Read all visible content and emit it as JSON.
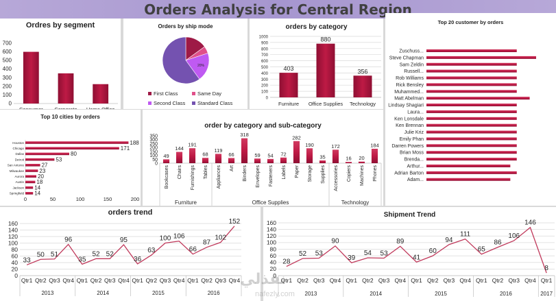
{
  "header": {
    "title": "Orders Analysis for Central Region"
  },
  "colors": {
    "bar": "#be1a45",
    "line": "#c0395b",
    "header": "#a999d2"
  },
  "watermark": {
    "text": "نفذلي",
    "sub": "nafezly.com"
  },
  "chart_data": [
    {
      "id": "segment",
      "type": "bar",
      "title": "Ordres by segment",
      "categories": [
        "Consumer",
        "Corporate",
        "Home Office"
      ],
      "values": [
        600,
        350,
        225
      ],
      "ylim": [
        0,
        700
      ],
      "yticks": [
        0,
        100,
        200,
        300,
        400,
        500,
        600,
        700
      ]
    },
    {
      "id": "shipmode",
      "type": "pie",
      "title": "Orders by ship mode",
      "categories": [
        "First Class",
        "Same Day",
        "Second Class",
        "Standard Class"
      ],
      "values": [
        15,
        5,
        20,
        60
      ],
      "slice_labels": [
        "",
        "",
        "20%",
        ""
      ],
      "colors": [
        "#9e1a46",
        "#e0508a",
        "#bf5af2",
        "#7452b0"
      ]
    },
    {
      "id": "category",
      "type": "bar",
      "title": "orders by category",
      "categories": [
        "Furniture",
        "Office Supplies",
        "Technology"
      ],
      "values": [
        403,
        880,
        356
      ],
      "ylim": [
        0,
        1000
      ],
      "yticks": [
        0,
        100,
        200,
        300,
        400,
        500,
        600,
        700,
        800,
        900,
        1000
      ]
    },
    {
      "id": "customers",
      "type": "bar",
      "title": "Top 20 customer by orders",
      "categories": [
        "Zuschuss...",
        "Steve Chapman",
        "Sam Zeldin",
        "Russell...",
        "Rob Williams",
        "Rick Bensley",
        "Muhammed...",
        "Matt Abelman",
        "Lindsay Shagiari",
        "Laura...",
        "Ken Lonsdale",
        "Ken Brennan",
        "Julie Kriz",
        "Emily Phan",
        "Darren Powers",
        "Brian Moss",
        "Brenda...",
        "Arthur...",
        "Adrian Barton",
        "Adam..."
      ],
      "values": [
        14,
        17,
        14,
        14,
        14,
        14,
        14,
        16,
        14,
        14,
        14,
        14,
        14,
        14,
        14,
        14,
        14,
        13,
        14,
        13
      ]
    },
    {
      "id": "cities",
      "type": "bar",
      "title": "Top 10 cities by orders",
      "categories": [
        "Houston",
        "Chicago",
        "Dallas",
        "Detroit",
        "San Antonio",
        "Milwaukee",
        "Aurora",
        "Austin",
        "Jackson",
        "Springfield"
      ],
      "values": [
        188,
        171,
        80,
        53,
        27,
        23,
        20,
        18,
        14,
        14
      ],
      "xlim": [
        0,
        200
      ],
      "xticks": [
        0,
        50,
        100,
        150,
        200
      ]
    },
    {
      "id": "subcategory",
      "type": "bar",
      "title": "order by category and sub-category",
      "categories": [
        "Bookcases",
        "Chairs",
        "Furnishings",
        "Tables",
        "Appliances",
        "Art",
        "Binders",
        "Envelopes",
        "Fasteners",
        "Labels",
        "Paper",
        "Storage",
        "Supplies",
        "Accessories",
        "Copiers",
        "Machines",
        "Phones"
      ],
      "values": [
        49,
        144,
        191,
        68,
        119,
        66,
        318,
        59,
        54,
        72,
        282,
        190,
        35,
        172,
        16,
        20,
        184
      ],
      "groups": [
        {
          "name": "Furniture",
          "count": 4
        },
        {
          "name": "Office Supplies",
          "count": 9
        },
        {
          "name": "Technology",
          "count": 4
        }
      ],
      "ylim": [
        0,
        350
      ],
      "yticks": [
        0,
        50,
        100,
        150,
        200,
        250,
        300,
        350
      ]
    },
    {
      "id": "orders_trend",
      "type": "line",
      "title": "orders trend",
      "categories": [
        "Qtr1",
        "Qtr2",
        "Qtr3",
        "Qtr4",
        "Qtr1",
        "Qtr2",
        "Qtr3",
        "Qtr4",
        "Qtr1",
        "Qtr2",
        "Qtr3",
        "Qtr4",
        "Qtr1",
        "Qtr2",
        "Qtr3",
        "Qtr4"
      ],
      "values": [
        33,
        50,
        51,
        96,
        35,
        52,
        52,
        95,
        36,
        63,
        100,
        106,
        66,
        87,
        102,
        152
      ],
      "years": [
        "2013",
        "2014",
        "2015",
        "2016"
      ],
      "ylim": [
        0,
        160
      ],
      "yticks": [
        0,
        20,
        40,
        60,
        80,
        100,
        120,
        140,
        160
      ]
    },
    {
      "id": "shipment_trend",
      "type": "line",
      "title": "Shipment Trend",
      "categories": [
        "Qtr1",
        "Qtr2",
        "Qtr3",
        "Qtr4",
        "Qtr1",
        "Qtr2",
        "Qtr3",
        "Qtr4",
        "Qtr1",
        "Qtr2",
        "Qtr3",
        "Qtr4",
        "Qtr1",
        "Qtr2",
        "Qtr3",
        "Qtr4",
        "Qtr1"
      ],
      "values": [
        28,
        52,
        53,
        90,
        39,
        54,
        53,
        89,
        41,
        60,
        94,
        111,
        65,
        86,
        106,
        146,
        8
      ],
      "years": [
        "2013",
        "2014",
        "2015",
        "2016",
        "2017"
      ],
      "ylim": [
        0,
        160
      ],
      "yticks": [
        0,
        20,
        40,
        60,
        80,
        100,
        120,
        140,
        160
      ]
    }
  ]
}
